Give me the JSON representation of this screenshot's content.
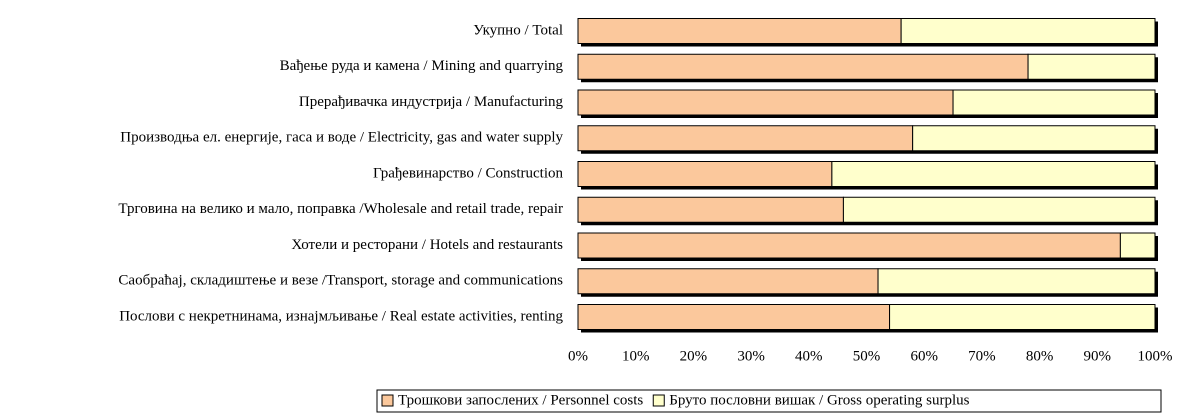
{
  "chart_data": {
    "type": "stacked_bar_horizontal",
    "categories": [
      "Укупно / Total",
      "Вађење руда и камена / Mining and quarrying",
      "Прерађивачка индустрија / Manufacturing",
      "Производња ел. енергије, гаса и воде / Electricity, gas and water supply",
      "Грађевинарство / Construction",
      "Трговина на велико и мало, поправка /Wholesale and retail trade, repair",
      "Хотели и ресторани / Hotels and restaurants",
      "Саобраћај, складиштење и везе /Transport, storage and communications",
      "Послови с некретнинама, изнајмљивање / Real estate activities, renting"
    ],
    "series": [
      {
        "name": "Трошкови запослених / Personnel costs",
        "color": "#fbc89c",
        "values": [
          56,
          78,
          65,
          58,
          44,
          46,
          94,
          52,
          54
        ]
      },
      {
        "name": "Бруто пословни вишак / Gross operating surplus",
        "color": "#ffffcc",
        "values": [
          44,
          22,
          35,
          42,
          56,
          54,
          6,
          48,
          46
        ]
      }
    ],
    "xlim": [
      0,
      100
    ],
    "xticks": [
      {
        "value": 0,
        "label": "0%"
      },
      {
        "value": 10,
        "label": "10%"
      },
      {
        "value": 20,
        "label": "20%"
      },
      {
        "value": 30,
        "label": "30%"
      },
      {
        "value": 40,
        "label": "40%"
      },
      {
        "value": 50,
        "label": "50%"
      },
      {
        "value": 60,
        "label": "60%"
      },
      {
        "value": 70,
        "label": "70%"
      },
      {
        "value": 80,
        "label": "80%"
      },
      {
        "value": 90,
        "label": "90%"
      },
      {
        "value": 100,
        "label": "100%"
      }
    ],
    "legend": "bottom"
  }
}
